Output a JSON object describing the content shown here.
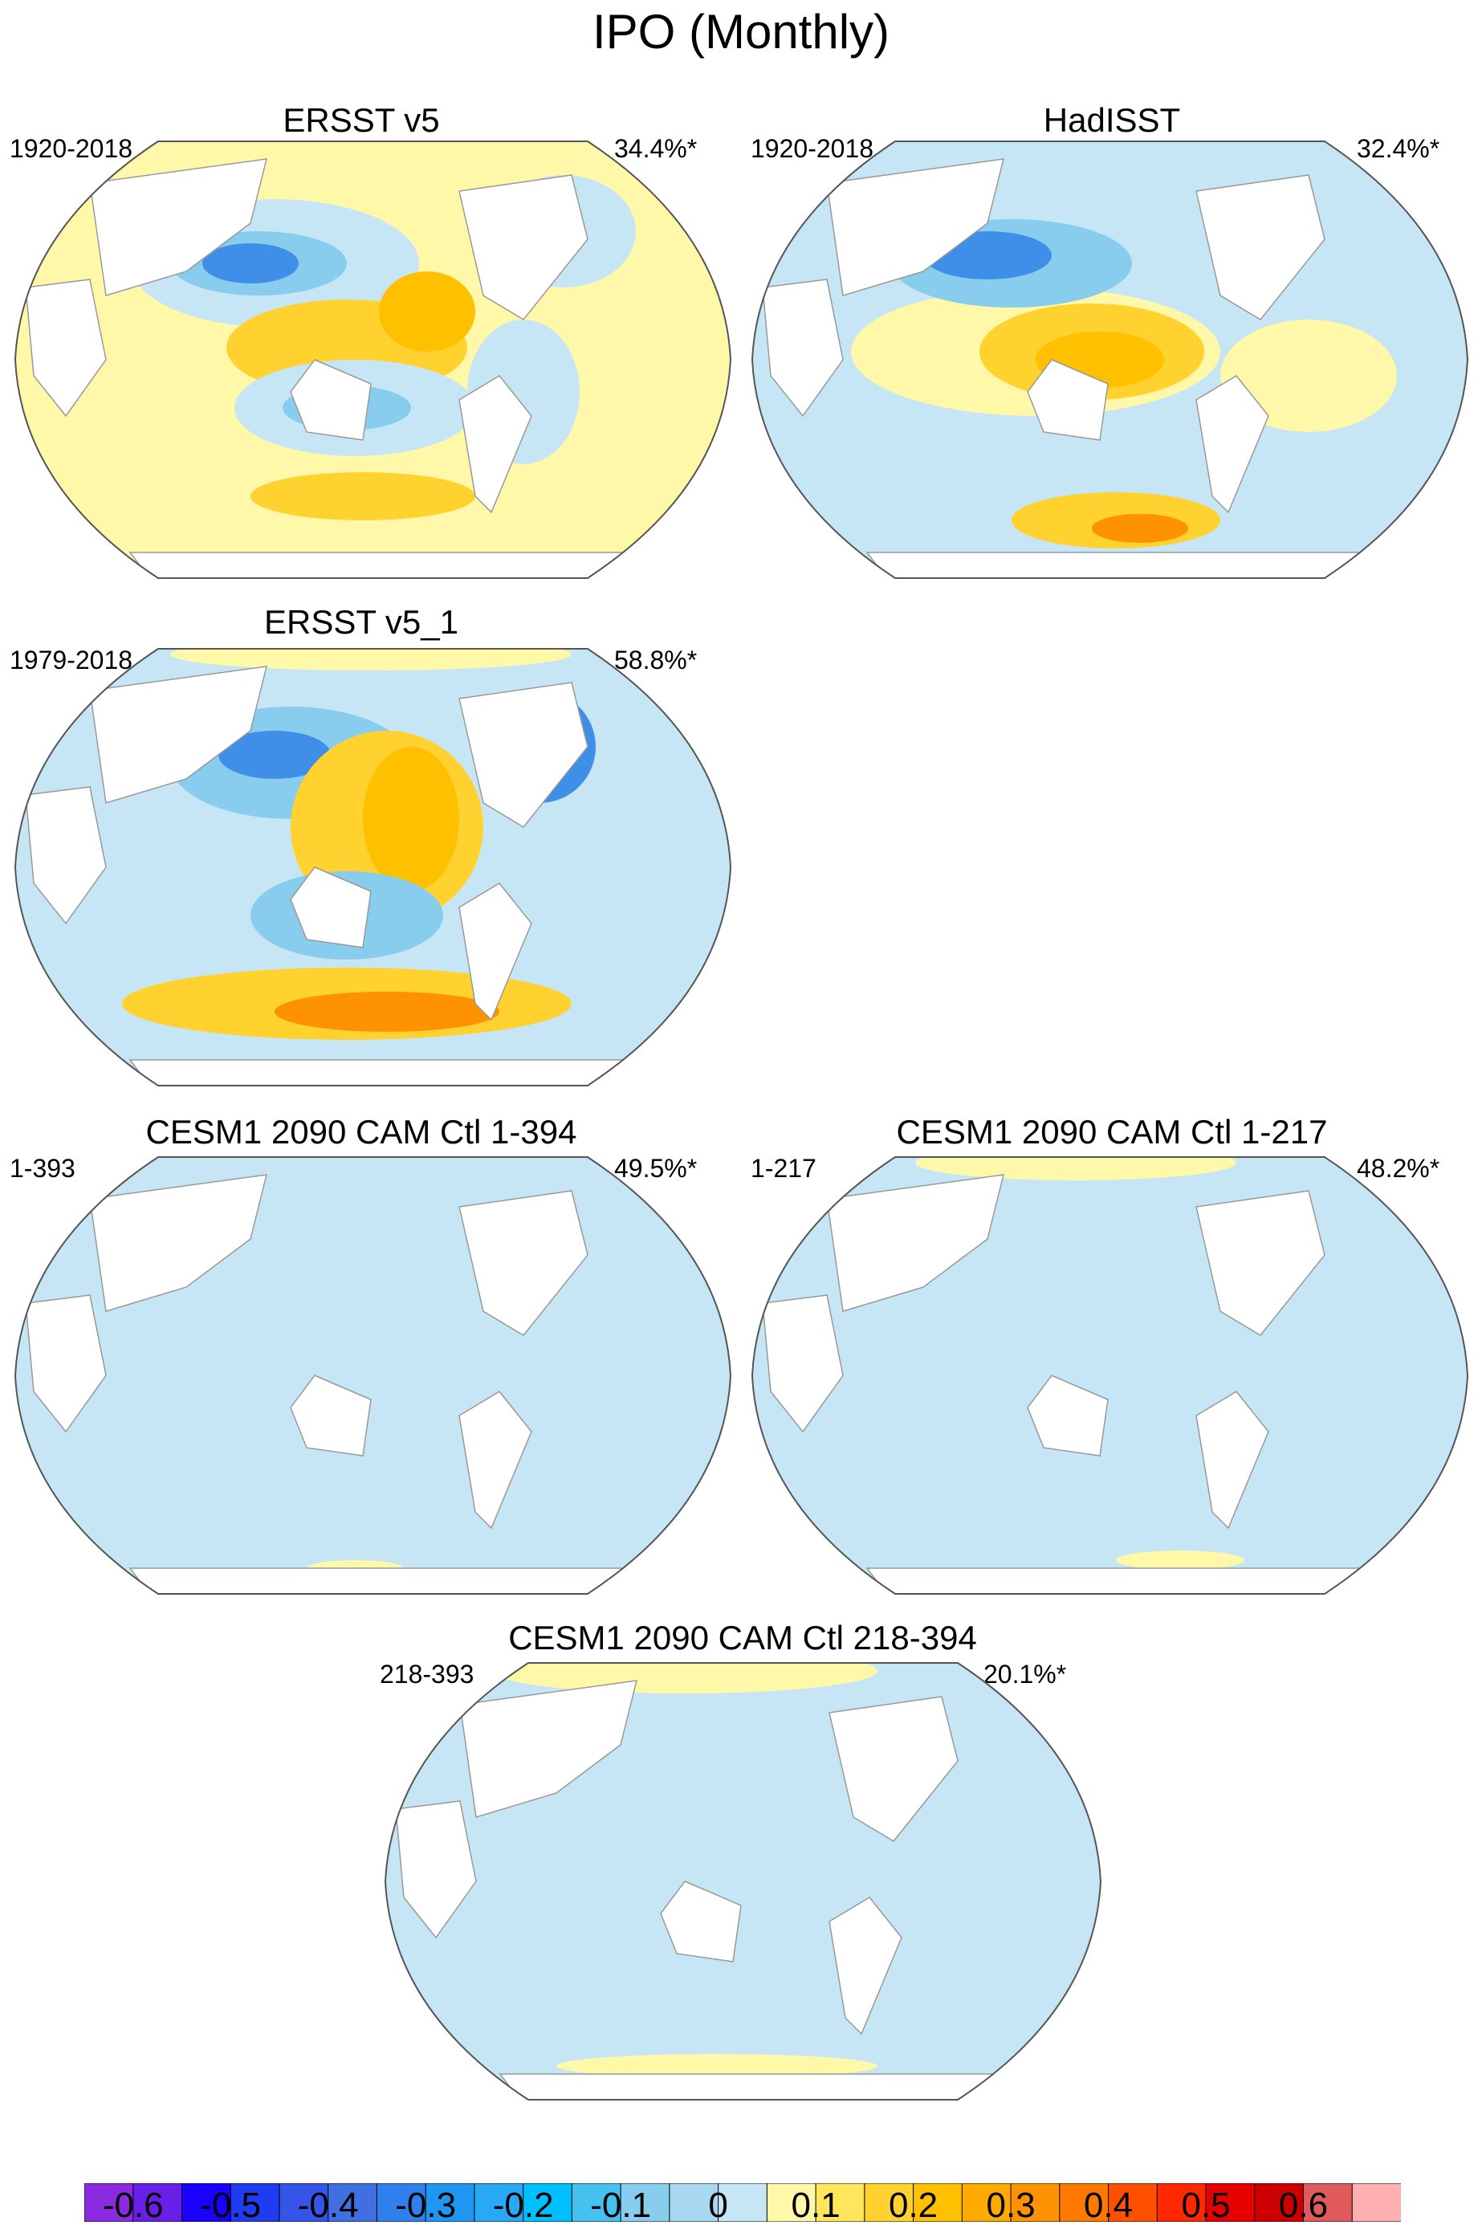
{
  "figure": {
    "title": "IPO (Monthly)"
  },
  "panels": [
    {
      "id": "ersst",
      "title": "ERSST v5",
      "period": "1920-2018",
      "variance": "34.4%*"
    },
    {
      "id": "hadisst",
      "title": "HadISST",
      "period": "1920-2018",
      "variance": "32.4%*"
    },
    {
      "id": "ersst1",
      "title": "ERSST v5_1",
      "period": "1979-2018",
      "variance": "58.8%*"
    },
    {
      "id": "cesm-1-394",
      "title": "CESM1 2090 CAM Ctl 1-394",
      "period": "1-393",
      "variance": "49.5%*"
    },
    {
      "id": "cesm-1-217",
      "title": "CESM1 2090 CAM Ctl 1-217",
      "period": "1-217",
      "variance": "48.2%*"
    },
    {
      "id": "cesm-218-394",
      "title": "CESM1 2090 CAM Ctl 218-394",
      "period": "218-393",
      "variance": "20.1%*"
    }
  ],
  "colorbar": {
    "labels": [
      "-0.6",
      "-0.5",
      "-0.4",
      "-0.3",
      "-0.2",
      "-0.1",
      "0",
      "0.1",
      "0.2",
      "0.3",
      "0.4",
      "0.5",
      "0.6"
    ],
    "colors": [
      "#8a2be2",
      "#6a1fe8",
      "#1a00ff",
      "#1f3cf0",
      "#3655e8",
      "#3f6fe0",
      "#2f80ec",
      "#1e96f2",
      "#28a8f5",
      "#00bfff",
      "#45c1f0",
      "#88ccee",
      "#a8d7f2",
      "#c6e6f5",
      "#fff8a8",
      "#ffe65a",
      "#ffd230",
      "#ffc000",
      "#ffaa00",
      "#ff9200",
      "#ff7800",
      "#ff5000",
      "#ff2800",
      "#e60000",
      "#cc0000",
      "#e05c5c",
      "#ffb0b0"
    ]
  }
}
